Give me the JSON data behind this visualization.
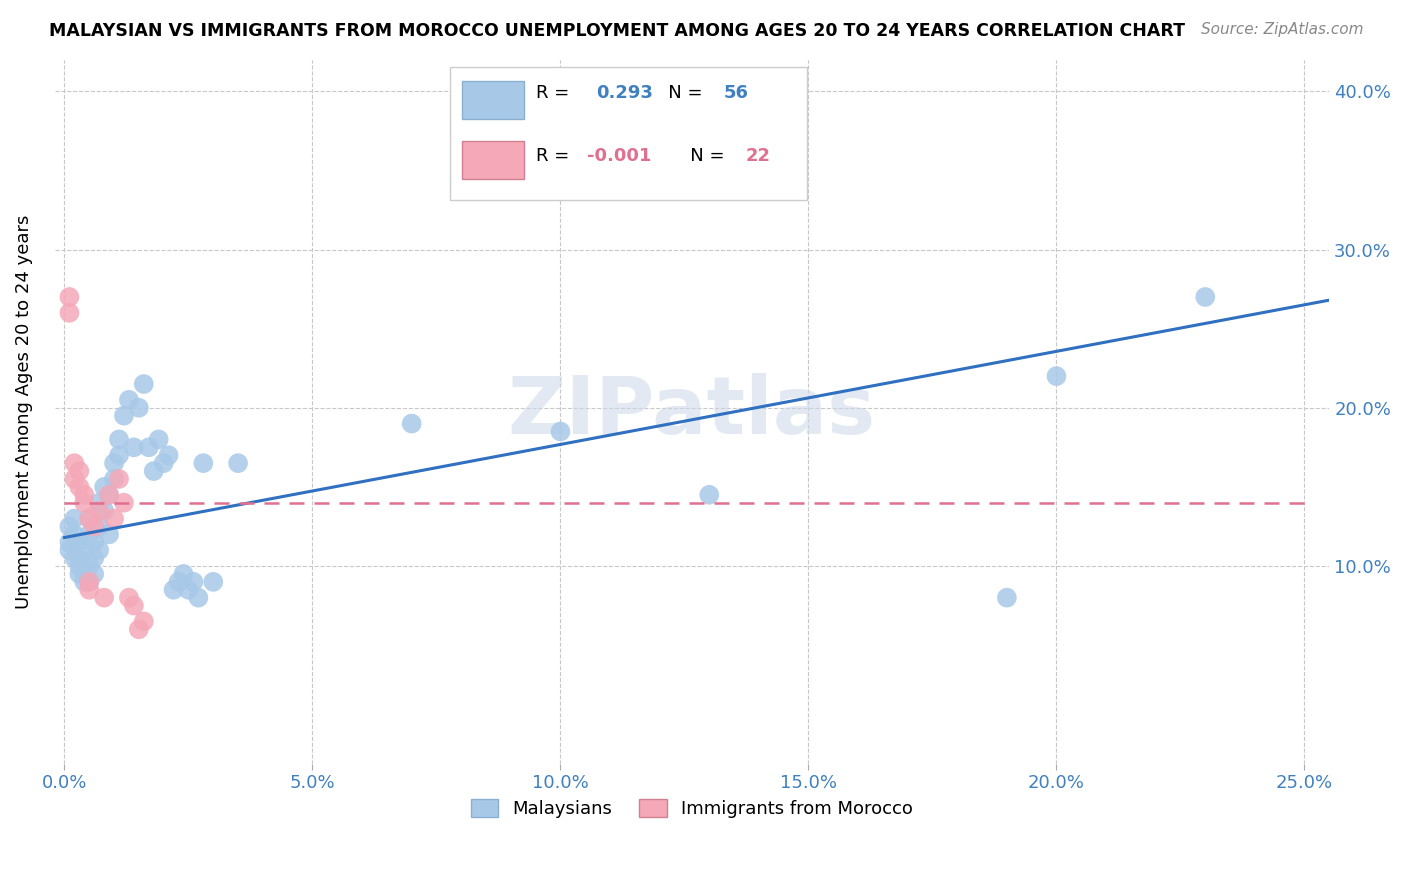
{
  "title": "MALAYSIAN VS IMMIGRANTS FROM MOROCCO UNEMPLOYMENT AMONG AGES 20 TO 24 YEARS CORRELATION CHART",
  "source": "Source: ZipAtlas.com",
  "ylabel": "Unemployment Among Ages 20 to 24 years",
  "xlim": [
    -0.002,
    0.255
  ],
  "ylim": [
    -0.025,
    0.42
  ],
  "xticks": [
    0.0,
    0.05,
    0.1,
    0.15,
    0.2,
    0.25
  ],
  "yticks_right": [
    0.1,
    0.2,
    0.3,
    0.4
  ],
  "ytick_right_labels": [
    "10.0%",
    "20.0%",
    "30.0%",
    "40.0%"
  ],
  "xtick_labels": [
    "0.0%",
    "5.0%",
    "10.0%",
    "15.0%",
    "20.0%",
    "25.0%"
  ],
  "blue_R": "0.293",
  "blue_N": "56",
  "pink_R": "-0.001",
  "pink_N": "22",
  "blue_color": "#a8c8e8",
  "pink_color": "#f4a8b8",
  "line_blue": "#3070c0",
  "line_pink": "#e07090",
  "tick_color": "#4080c0",
  "watermark": "ZIPatlas",
  "malaysians_x": [
    0.001,
    0.001,
    0.001,
    0.002,
    0.002,
    0.002,
    0.003,
    0.003,
    0.003,
    0.003,
    0.004,
    0.004,
    0.004,
    0.005,
    0.005,
    0.005,
    0.005,
    0.006,
    0.006,
    0.006,
    0.007,
    0.007,
    0.007,
    0.008,
    0.008,
    0.009,
    0.009,
    0.01,
    0.01,
    0.011,
    0.011,
    0.012,
    0.013,
    0.014,
    0.015,
    0.016,
    0.017,
    0.018,
    0.019,
    0.02,
    0.021,
    0.022,
    0.023,
    0.024,
    0.025,
    0.026,
    0.027,
    0.028,
    0.03,
    0.035,
    0.07,
    0.1,
    0.13,
    0.19,
    0.2,
    0.23
  ],
  "malaysians_y": [
    0.115,
    0.125,
    0.11,
    0.105,
    0.12,
    0.13,
    0.1,
    0.115,
    0.095,
    0.105,
    0.09,
    0.095,
    0.11,
    0.13,
    0.12,
    0.1,
    0.09,
    0.115,
    0.105,
    0.095,
    0.125,
    0.14,
    0.11,
    0.15,
    0.135,
    0.145,
    0.12,
    0.165,
    0.155,
    0.18,
    0.17,
    0.195,
    0.205,
    0.175,
    0.2,
    0.215,
    0.175,
    0.16,
    0.18,
    0.165,
    0.17,
    0.085,
    0.09,
    0.095,
    0.085,
    0.09,
    0.08,
    0.165,
    0.09,
    0.165,
    0.19,
    0.185,
    0.145,
    0.08,
    0.22,
    0.27
  ],
  "moroccan_x": [
    0.001,
    0.001,
    0.002,
    0.002,
    0.003,
    0.003,
    0.004,
    0.004,
    0.005,
    0.005,
    0.005,
    0.006,
    0.007,
    0.008,
    0.009,
    0.01,
    0.011,
    0.012,
    0.013,
    0.014,
    0.015,
    0.016
  ],
  "moroccan_y": [
    0.26,
    0.27,
    0.155,
    0.165,
    0.15,
    0.16,
    0.14,
    0.145,
    0.085,
    0.09,
    0.13,
    0.125,
    0.135,
    0.08,
    0.145,
    0.13,
    0.155,
    0.14,
    0.08,
    0.075,
    0.06,
    0.065
  ],
  "blue_line_x": [
    0.0,
    0.255
  ],
  "blue_line_y": [
    0.118,
    0.268
  ],
  "pink_line_x": [
    0.0,
    0.25
  ],
  "pink_line_y": [
    0.14,
    0.14
  ],
  "legend_label_blue": "Malaysians",
  "legend_label_pink": "Immigrants from Morocco"
}
